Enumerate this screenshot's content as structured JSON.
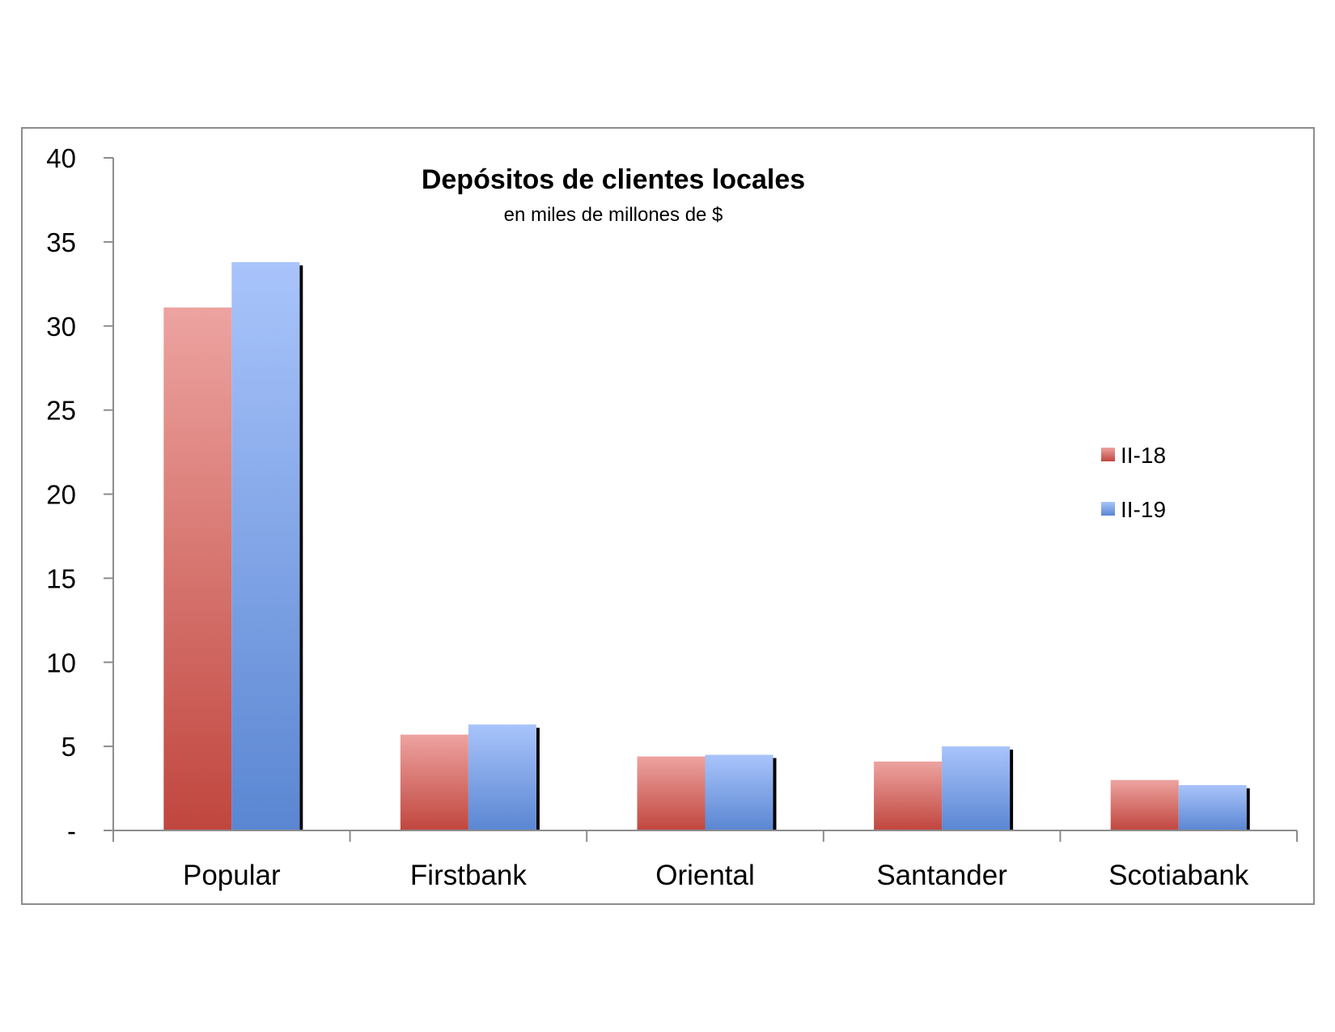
{
  "chart_data": {
    "type": "bar",
    "title": "Depósitos de clientes locales",
    "subtitle": "en miles de millones de $",
    "categories": [
      "Popular",
      "Firstbank",
      "Oriental",
      "Santander",
      "Scotiabank"
    ],
    "series": [
      {
        "name": "II-18",
        "values": [
          31.1,
          5.7,
          4.4,
          4.1,
          3.0
        ],
        "color_top": "#eda3a0",
        "color_bottom": "#c0463e"
      },
      {
        "name": "II-19",
        "values": [
          33.8,
          6.3,
          4.5,
          5.0,
          2.7
        ],
        "color_top": "#a9c4fb",
        "color_bottom": "#5a86d2"
      }
    ],
    "ylim": [
      0,
      40
    ],
    "yticks": [
      0,
      5,
      10,
      15,
      20,
      25,
      30,
      35,
      40
    ],
    "ytick_labels": [
      "-",
      "5",
      "10",
      "15",
      "20",
      "25",
      "30",
      "35",
      "40"
    ],
    "grid": false,
    "legend_position": "right"
  }
}
